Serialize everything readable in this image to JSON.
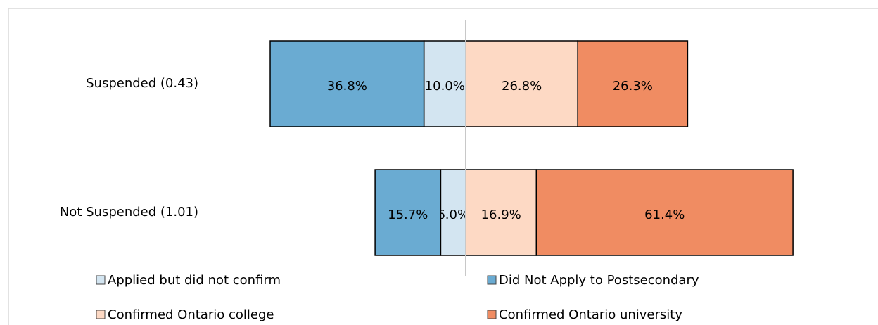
{
  "chart_data": {
    "type": "diverging-bar",
    "categories": [
      "Suspended (0.43)",
      "Not Suspended (1.01)"
    ],
    "series": [
      {
        "name": "Applied but did not confirm",
        "color": "#d3e5f1",
        "values": [
          10.0,
          6.0
        ],
        "value_labels": [
          "10.0%",
          "6.0%"
        ]
      },
      {
        "name": "Did Not Apply to Postsecondary",
        "color": "#6aabd2",
        "values": [
          36.8,
          15.7
        ],
        "value_labels": [
          "36.8%",
          "15.7%"
        ]
      },
      {
        "name": "Confirmed Ontario college",
        "color": "#fdd9c4",
        "values": [
          26.8,
          16.9
        ],
        "value_labels": [
          "26.8%",
          "16.9%"
        ]
      },
      {
        "name": "Confirmed Ontario university",
        "color": "#f08c62",
        "values": [
          26.3,
          61.4
        ],
        "value_labels": [
          "26.3%",
          "61.4%"
        ]
      }
    ]
  }
}
